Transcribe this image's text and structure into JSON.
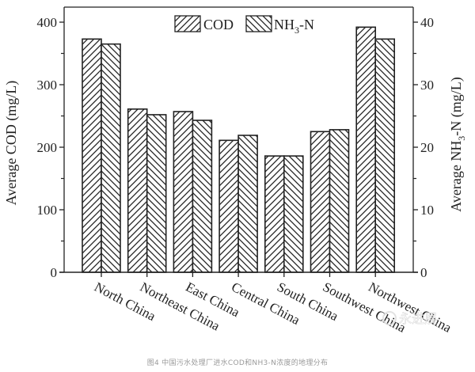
{
  "chart_data": {
    "type": "bar",
    "title": "",
    "categories": [
      "North China",
      "Northeast China",
      "East China",
      "Central China",
      "South China",
      "Southwest China",
      "Northwest China"
    ],
    "series": [
      {
        "name": "COD",
        "axis": "left",
        "pattern": "forward-diagonal-hatch",
        "values": [
          373,
          261,
          257,
          211,
          186,
          225,
          392
        ]
      },
      {
        "name": "NH3-N",
        "axis": "right",
        "pattern": "backward-diagonal-hatch",
        "values": [
          36.5,
          25.2,
          24.3,
          21.9,
          18.6,
          22.8,
          37.3
        ]
      }
    ],
    "xlabel": "",
    "ylabel": "Average COD (mg/L)",
    "ylabel_right": "Average NH3-N (mg/L)",
    "ylim": [
      0,
      425
    ],
    "ylim_right": [
      0,
      42.5
    ],
    "yticks": [
      0,
      100,
      200,
      300,
      400
    ],
    "yticks_right": [
      0,
      10,
      20,
      30,
      40
    ],
    "grid": false,
    "legend_position": "top-center-inside",
    "legend": [
      "COD",
      "NH3-N"
    ]
  },
  "labels": {
    "ylabel_left": "Average COD (mg/L)",
    "ylabel_right_prefix": "Average NH",
    "ylabel_right_sub": "3",
    "ylabel_right_suffix": "-N (mg/L)",
    "legend_cod": "COD",
    "legend_nh3_main": "NH",
    "legend_nh3_sub": "3",
    "legend_nh3_suffix": "-N"
  },
  "watermark": "永进展",
  "caption": "图4 中国污水处理厂进水COD和NH3-N浓度的地理分布"
}
